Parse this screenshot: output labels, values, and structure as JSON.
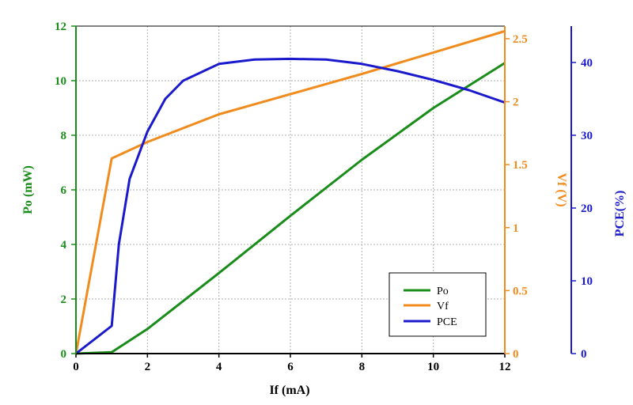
{
  "chart_data": {
    "type": "line",
    "xlabel": "If (mA)",
    "x_ticks": [
      "0",
      "2",
      "4",
      "6",
      "8",
      "10",
      "12"
    ],
    "xlim": [
      0,
      12
    ],
    "grid": true,
    "legend_position": "bottom-right",
    "axes": {
      "left": {
        "label": "Po (mW)",
        "color": "#1a8c1a",
        "lim": [
          0,
          12
        ],
        "ticks": [
          "0",
          "2",
          "4",
          "6",
          "8",
          "10",
          "12"
        ],
        "tick_values": [
          0,
          2,
          4,
          6,
          8,
          10,
          12
        ]
      },
      "right1": {
        "label": "Vf (V)",
        "color": "#f08c1e",
        "lim": [
          0,
          2.6
        ],
        "ticks": [
          "0",
          "0.5",
          "1",
          "1.5",
          "2",
          "2.5"
        ],
        "tick_values": [
          0,
          0.5,
          1,
          1.5,
          2,
          2.5
        ]
      },
      "right2": {
        "label": "PCE(%)",
        "color": "#1a1acc",
        "lim": [
          0,
          45
        ],
        "ticks": [
          "0",
          "10",
          "20",
          "30",
          "40"
        ],
        "tick_values": [
          0,
          10,
          20,
          30,
          40
        ]
      }
    },
    "series": [
      {
        "name": "Po",
        "axis": "left",
        "color": "#1a8c1a",
        "x": [
          0,
          1,
          2,
          4,
          6,
          8,
          10,
          12
        ],
        "y": [
          0,
          0.05,
          0.9,
          2.95,
          5.05,
          7.1,
          9.0,
          10.65
        ]
      },
      {
        "name": "Vf",
        "axis": "right1",
        "color": "#f08c1e",
        "x": [
          0,
          1,
          2,
          4,
          6,
          8,
          10,
          12
        ],
        "y": [
          0,
          1.55,
          1.68,
          1.9,
          2.06,
          2.22,
          2.39,
          2.56
        ]
      },
      {
        "name": "PCE",
        "axis": "right2",
        "color": "#1a1acc",
        "x": [
          0,
          1,
          1.2,
          1.5,
          2,
          2.5,
          3,
          4,
          5,
          6,
          7,
          8,
          9,
          10,
          11,
          12
        ],
        "y": [
          0,
          3.8,
          15,
          24,
          30.5,
          35,
          37.5,
          39.8,
          40.4,
          40.5,
          40.4,
          39.8,
          38.8,
          37.6,
          36.2,
          34.5
        ]
      }
    ]
  }
}
